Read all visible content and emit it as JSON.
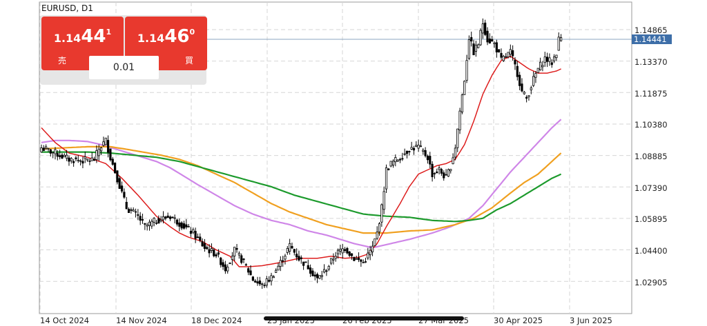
{
  "chart_header": {
    "symbol": "EURUSD, D1"
  },
  "trade_panel": {
    "sell": {
      "prefix": "1.14",
      "big": "44",
      "sup": "1",
      "label": "売"
    },
    "buy": {
      "prefix": "1.14",
      "big": "46",
      "sup": "0",
      "label": "買"
    },
    "lot_size": "0.01"
  },
  "colors": {
    "candle": "#000000",
    "ma_red": "#dd1c1c",
    "ma_violet": "#cf86e8",
    "ma_orange": "#f0a020",
    "ma_green": "#1c9a2c",
    "current_price_line": "#8aa4c0",
    "price_tag": "#3d6ea8",
    "trade_button": "#e8392e"
  },
  "chart_data": {
    "type": "candlestick",
    "symbol": "EURUSD",
    "timeframe": "D1",
    "current_price": "1.14441",
    "y_ticks": [
      "1.14865",
      "1.13370",
      "1.11875",
      "1.10380",
      "1.08885",
      "1.07390",
      "1.05895",
      "1.04400",
      "1.02905"
    ],
    "x_ticks": [
      "14 Oct 2024",
      "14 Nov 2024",
      "18 Dec 2024",
      "23 Jan 2025",
      "26 Feb 2025",
      "27 Mar 2025",
      "30 Apr 2025",
      "3 Jun 2025"
    ],
    "price_anchors": [
      [
        0,
        1.0925
      ],
      [
        6,
        1.09
      ],
      [
        12,
        1.087
      ],
      [
        18,
        1.0865
      ],
      [
        23,
        1.087
      ],
      [
        25,
        1.092
      ],
      [
        28,
        1.096
      ],
      [
        30,
        1.088
      ],
      [
        33,
        1.078
      ],
      [
        37,
        1.064
      ],
      [
        42,
        1.06
      ],
      [
        45,
        1.055
      ],
      [
        50,
        1.058
      ],
      [
        56,
        1.06
      ],
      [
        61,
        1.056
      ],
      [
        66,
        1.052
      ],
      [
        71,
        1.045
      ],
      [
        76,
        1.042
      ],
      [
        80,
        1.035
      ],
      [
        84,
        1.044
      ],
      [
        88,
        1.038
      ],
      [
        92,
        1.03
      ],
      [
        96,
        1.027
      ],
      [
        100,
        1.031
      ],
      [
        104,
        1.038
      ],
      [
        108,
        1.046
      ],
      [
        112,
        1.04
      ],
      [
        116,
        1.036
      ],
      [
        120,
        1.03
      ],
      [
        124,
        1.035
      ],
      [
        128,
        1.042
      ],
      [
        132,
        1.045
      ],
      [
        136,
        1.04
      ],
      [
        140,
        1.038
      ],
      [
        144,
        1.045
      ],
      [
        146,
        1.052
      ],
      [
        148,
        1.064
      ],
      [
        150,
        1.082
      ],
      [
        152,
        1.085
      ],
      [
        156,
        1.088
      ],
      [
        160,
        1.092
      ],
      [
        164,
        1.093
      ],
      [
        168,
        1.088
      ],
      [
        170,
        1.08
      ],
      [
        173,
        1.082
      ],
      [
        176,
        1.078
      ],
      [
        178,
        1.084
      ],
      [
        180,
        1.093
      ],
      [
        182,
        1.11
      ],
      [
        184,
        1.125
      ],
      [
        186,
        1.145
      ],
      [
        188,
        1.138
      ],
      [
        190,
        1.142
      ],
      [
        192,
        1.152
      ],
      [
        194,
        1.144
      ],
      [
        197,
        1.142
      ],
      [
        200,
        1.134
      ],
      [
        204,
        1.138
      ],
      [
        207,
        1.128
      ],
      [
        209,
        1.119
      ],
      [
        211,
        1.116
      ],
      [
        214,
        1.125
      ],
      [
        216,
        1.13
      ],
      [
        219,
        1.135
      ],
      [
        222,
        1.133
      ],
      [
        224,
        1.138
      ],
      [
        225,
        1.144
      ],
      [
        226,
        1.145
      ]
    ],
    "moving_averages": {
      "red_ma": [
        [
          0,
          1.102
        ],
        [
          6,
          1.095
        ],
        [
          12,
          1.09
        ],
        [
          20,
          1.088
        ],
        [
          28,
          1.085
        ],
        [
          35,
          1.078
        ],
        [
          42,
          1.07
        ],
        [
          50,
          1.06
        ],
        [
          56,
          1.055
        ],
        [
          60,
          1.052
        ],
        [
          64,
          1.05
        ],
        [
          70,
          1.048
        ],
        [
          76,
          1.044
        ],
        [
          82,
          1.041
        ],
        [
          86,
          1.036
        ],
        [
          90,
          1.036
        ],
        [
          96,
          1.0365
        ],
        [
          104,
          1.038
        ],
        [
          112,
          1.04
        ],
        [
          120,
          1.04
        ],
        [
          126,
          1.041
        ],
        [
          132,
          1.04
        ],
        [
          138,
          1.0405
        ],
        [
          142,
          1.042
        ],
        [
          146,
          1.047
        ],
        [
          150,
          1.055
        ],
        [
          156,
          1.066
        ],
        [
          160,
          1.074
        ],
        [
          164,
          1.08
        ],
        [
          168,
          1.082
        ],
        [
          172,
          1.084
        ],
        [
          176,
          1.085
        ],
        [
          180,
          1.087
        ],
        [
          184,
          1.094
        ],
        [
          188,
          1.105
        ],
        [
          192,
          1.118
        ],
        [
          196,
          1.127
        ],
        [
          200,
          1.134
        ],
        [
          204,
          1.136
        ],
        [
          208,
          1.133
        ],
        [
          212,
          1.13
        ],
        [
          216,
          1.128
        ],
        [
          220,
          1.128
        ],
        [
          224,
          1.129
        ],
        [
          226,
          1.13
        ]
      ],
      "violet_ma": [
        [
          0,
          1.095
        ],
        [
          6,
          1.096
        ],
        [
          12,
          1.096
        ],
        [
          20,
          1.0955
        ],
        [
          26,
          1.094
        ],
        [
          32,
          1.092
        ],
        [
          38,
          1.09
        ],
        [
          44,
          1.088
        ],
        [
          50,
          1.086
        ],
        [
          56,
          1.083
        ],
        [
          62,
          1.079
        ],
        [
          68,
          1.075
        ],
        [
          76,
          1.07
        ],
        [
          84,
          1.065
        ],
        [
          92,
          1.061
        ],
        [
          100,
          1.058
        ],
        [
          108,
          1.056
        ],
        [
          116,
          1.053
        ],
        [
          124,
          1.051
        ],
        [
          130,
          1.049
        ],
        [
          136,
          1.047
        ],
        [
          144,
          1.045
        ],
        [
          152,
          1.047
        ],
        [
          160,
          1.049
        ],
        [
          170,
          1.052
        ],
        [
          178,
          1.055
        ],
        [
          186,
          1.059
        ],
        [
          192,
          1.065
        ],
        [
          198,
          1.073
        ],
        [
          204,
          1.081
        ],
        [
          210,
          1.088
        ],
        [
          216,
          1.095
        ],
        [
          222,
          1.102
        ],
        [
          226,
          1.106
        ]
      ],
      "orange_ma": [
        [
          0,
          1.092
        ],
        [
          10,
          1.0925
        ],
        [
          20,
          1.093
        ],
        [
          30,
          1.093
        ],
        [
          36,
          1.092
        ],
        [
          44,
          1.0905
        ],
        [
          52,
          1.089
        ],
        [
          60,
          1.087
        ],
        [
          68,
          1.084
        ],
        [
          76,
          1.08
        ],
        [
          84,
          1.076
        ],
        [
          92,
          1.071
        ],
        [
          100,
          1.066
        ],
        [
          108,
          1.062
        ],
        [
          116,
          1.059
        ],
        [
          124,
          1.056
        ],
        [
          132,
          1.054
        ],
        [
          140,
          1.052
        ],
        [
          150,
          1.052
        ],
        [
          160,
          1.053
        ],
        [
          170,
          1.0535
        ],
        [
          180,
          1.056
        ],
        [
          188,
          1.059
        ],
        [
          196,
          1.064
        ],
        [
          204,
          1.071
        ],
        [
          210,
          1.076
        ],
        [
          216,
          1.08
        ],
        [
          222,
          1.086
        ],
        [
          226,
          1.09
        ]
      ],
      "green_ma": [
        [
          0,
          1.0905
        ],
        [
          10,
          1.0905
        ],
        [
          20,
          1.0905
        ],
        [
          30,
          1.09
        ],
        [
          40,
          1.089
        ],
        [
          50,
          1.088
        ],
        [
          60,
          1.086
        ],
        [
          70,
          1.083
        ],
        [
          80,
          1.08
        ],
        [
          90,
          1.077
        ],
        [
          100,
          1.074
        ],
        [
          110,
          1.07
        ],
        [
          120,
          1.067
        ],
        [
          130,
          1.064
        ],
        [
          140,
          1.061
        ],
        [
          150,
          1.06
        ],
        [
          160,
          1.0595
        ],
        [
          170,
          1.058
        ],
        [
          180,
          1.0575
        ],
        [
          186,
          1.058
        ],
        [
          192,
          1.059
        ],
        [
          198,
          1.063
        ],
        [
          204,
          1.066
        ],
        [
          210,
          1.07
        ],
        [
          216,
          1.074
        ],
        [
          222,
          1.078
        ],
        [
          226,
          1.08
        ]
      ]
    }
  }
}
